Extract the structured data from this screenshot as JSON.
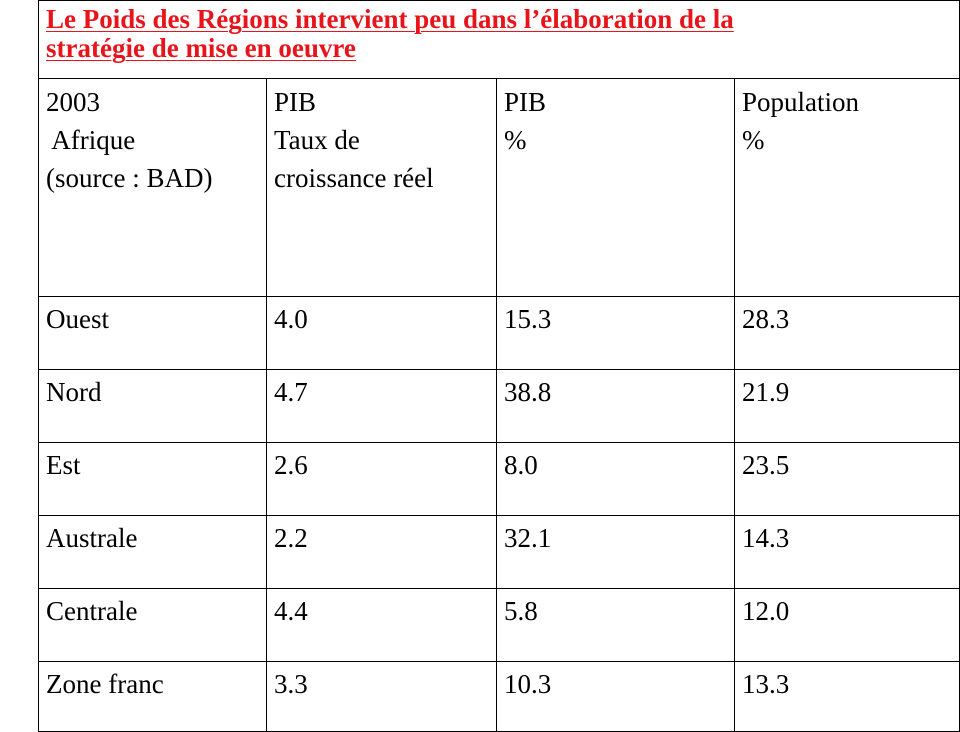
{
  "title": {
    "line1": "Le Poids des Régions intervient peu dans l’élaboration de la",
    "line2": "stratégie de mise en oeuvre"
  },
  "table": {
    "headers": [
      {
        "lines": [
          "2003",
          " Afrique",
          "(source : BAD)"
        ]
      },
      {
        "lines": [
          "PIB",
          "Taux de",
          "croissance réel"
        ]
      },
      {
        "lines": [
          "PIB",
          "%"
        ]
      },
      {
        "lines": [
          "Population",
          "%"
        ]
      }
    ],
    "rows": [
      [
        "Ouest",
        "4.0",
        "15.3",
        "28.3"
      ],
      [
        "Nord",
        "4.7",
        "38.8",
        "21.9"
      ],
      [
        "Est",
        "2.6",
        "8.0",
        "23.5"
      ],
      [
        "Australe",
        "2.2",
        "32.1",
        "14.3"
      ],
      [
        "Centrale",
        "4.4",
        "5.8",
        "12.0"
      ],
      [
        "Zone franc",
        "3.3",
        "10.3",
        "13.3"
      ]
    ]
  },
  "colors": {
    "title": "#e8141b",
    "text": "#000000",
    "border": "#000000"
  }
}
